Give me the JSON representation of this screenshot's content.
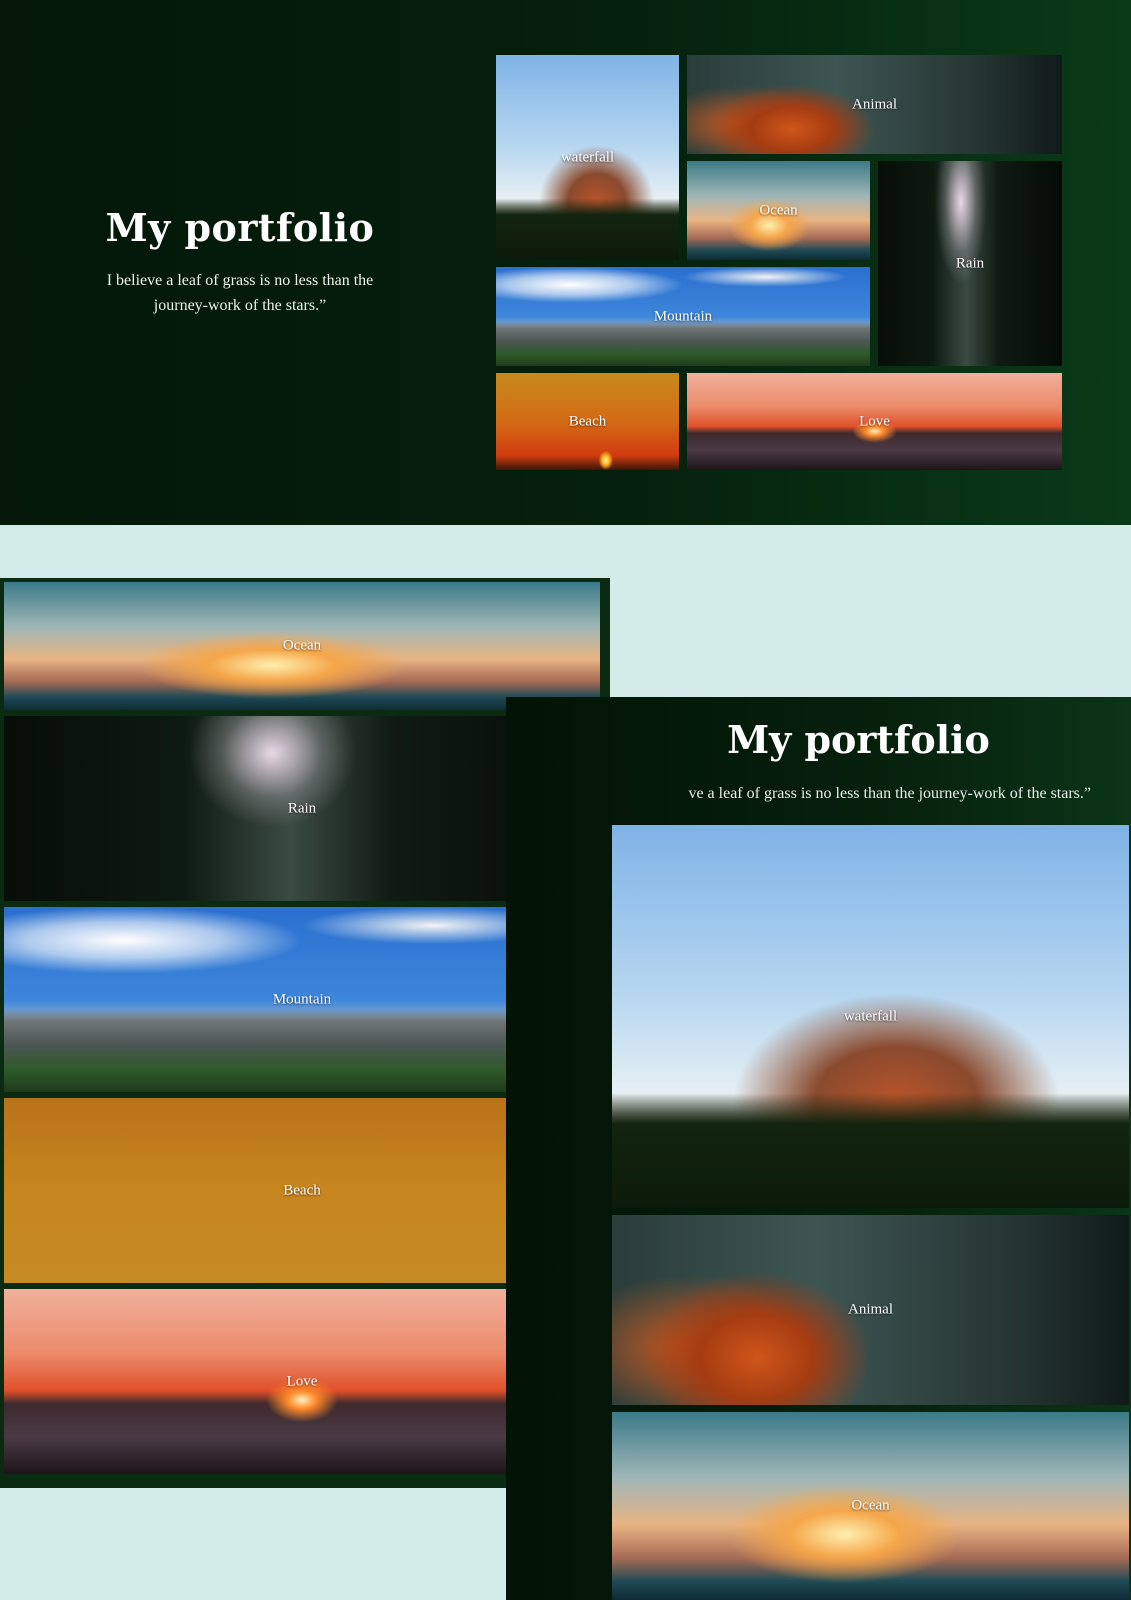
{
  "desktop": {
    "title": "My portfolio",
    "quote_line1": "I believe a leaf of grass is no less than the",
    "quote_line2": "journey-work of the stars.”",
    "tiles": {
      "waterfall": "waterfall",
      "animal": "Animal",
      "ocean": "Ocean",
      "rain": "Rain",
      "mountain": "Mountain",
      "beach": "Beach",
      "love": "Love"
    }
  },
  "mobile_left": {
    "tiles": [
      "Ocean",
      "Rain",
      "Mountain",
      "Beach",
      "Love"
    ]
  },
  "mobile_right": {
    "title": "My portfolio",
    "quote_visible": "ve a leaf of grass is no less than the journey-work of the stars.”",
    "tiles": [
      "waterfall",
      "Animal",
      "Ocean"
    ]
  },
  "colors": {
    "page_background": "#d3ece9",
    "dark_green": "#05200d",
    "label_text": "#ffffff"
  }
}
